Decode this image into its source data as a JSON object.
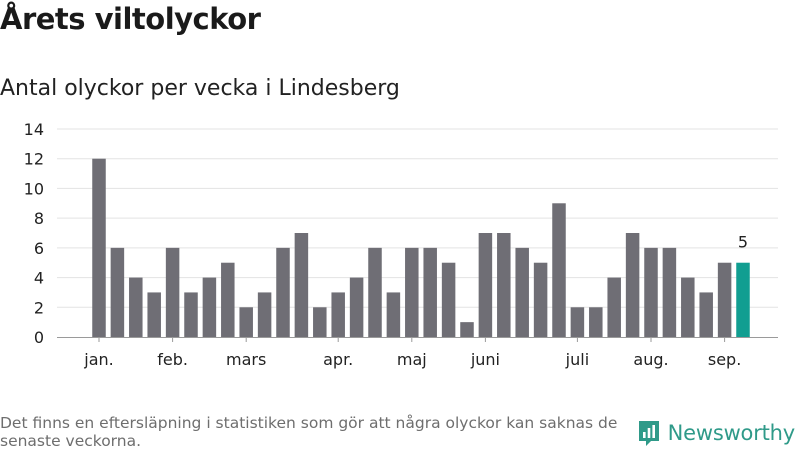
{
  "title": "Årets viltolyckor",
  "subtitle": "Antal olyckor per vecka i Lindesberg",
  "footnote": "Det finns en eftersläpning i statistiken som gör att några olyckor kan saknas de senaste veckorna.",
  "brand": {
    "name": "Newsworthy",
    "icon": "newsworthy-logo-icon"
  },
  "colors": {
    "bar": "#6f6e75",
    "highlight": "#119e91",
    "grid": "#e3e3e3",
    "axis": "#9a9a9a",
    "brand": "#2f9a89"
  },
  "chart_data": {
    "type": "bar",
    "title": "Årets viltolyckor",
    "subtitle": "Antal olyckor per vecka i Lindesberg",
    "xlabel": "",
    "ylabel": "",
    "ylim": [
      0,
      14
    ],
    "yticks": [
      0,
      2,
      4,
      6,
      8,
      10,
      12,
      14
    ],
    "grid": true,
    "values": [
      12,
      6,
      4,
      3,
      6,
      3,
      4,
      5,
      2,
      3,
      6,
      7,
      2,
      3,
      4,
      6,
      3,
      6,
      6,
      5,
      1,
      7,
      7,
      6,
      5,
      9,
      2,
      2,
      4,
      7,
      6,
      6,
      4,
      3,
      5,
      5
    ],
    "x_labels": [
      {
        "label": "jan.",
        "bar": 0
      },
      {
        "label": "feb.",
        "bar": 4
      },
      {
        "label": "mars",
        "bar": 8
      },
      {
        "label": "apr.",
        "bar": 13
      },
      {
        "label": "maj",
        "bar": 17
      },
      {
        "label": "juni",
        "bar": 21
      },
      {
        "label": "juli",
        "bar": 26
      },
      {
        "label": "aug.",
        "bar": 30
      },
      {
        "label": "sep.",
        "bar": 34
      }
    ],
    "highlight_bar": 35,
    "data_labels": [
      {
        "bar": 35,
        "text": "5"
      }
    ]
  }
}
